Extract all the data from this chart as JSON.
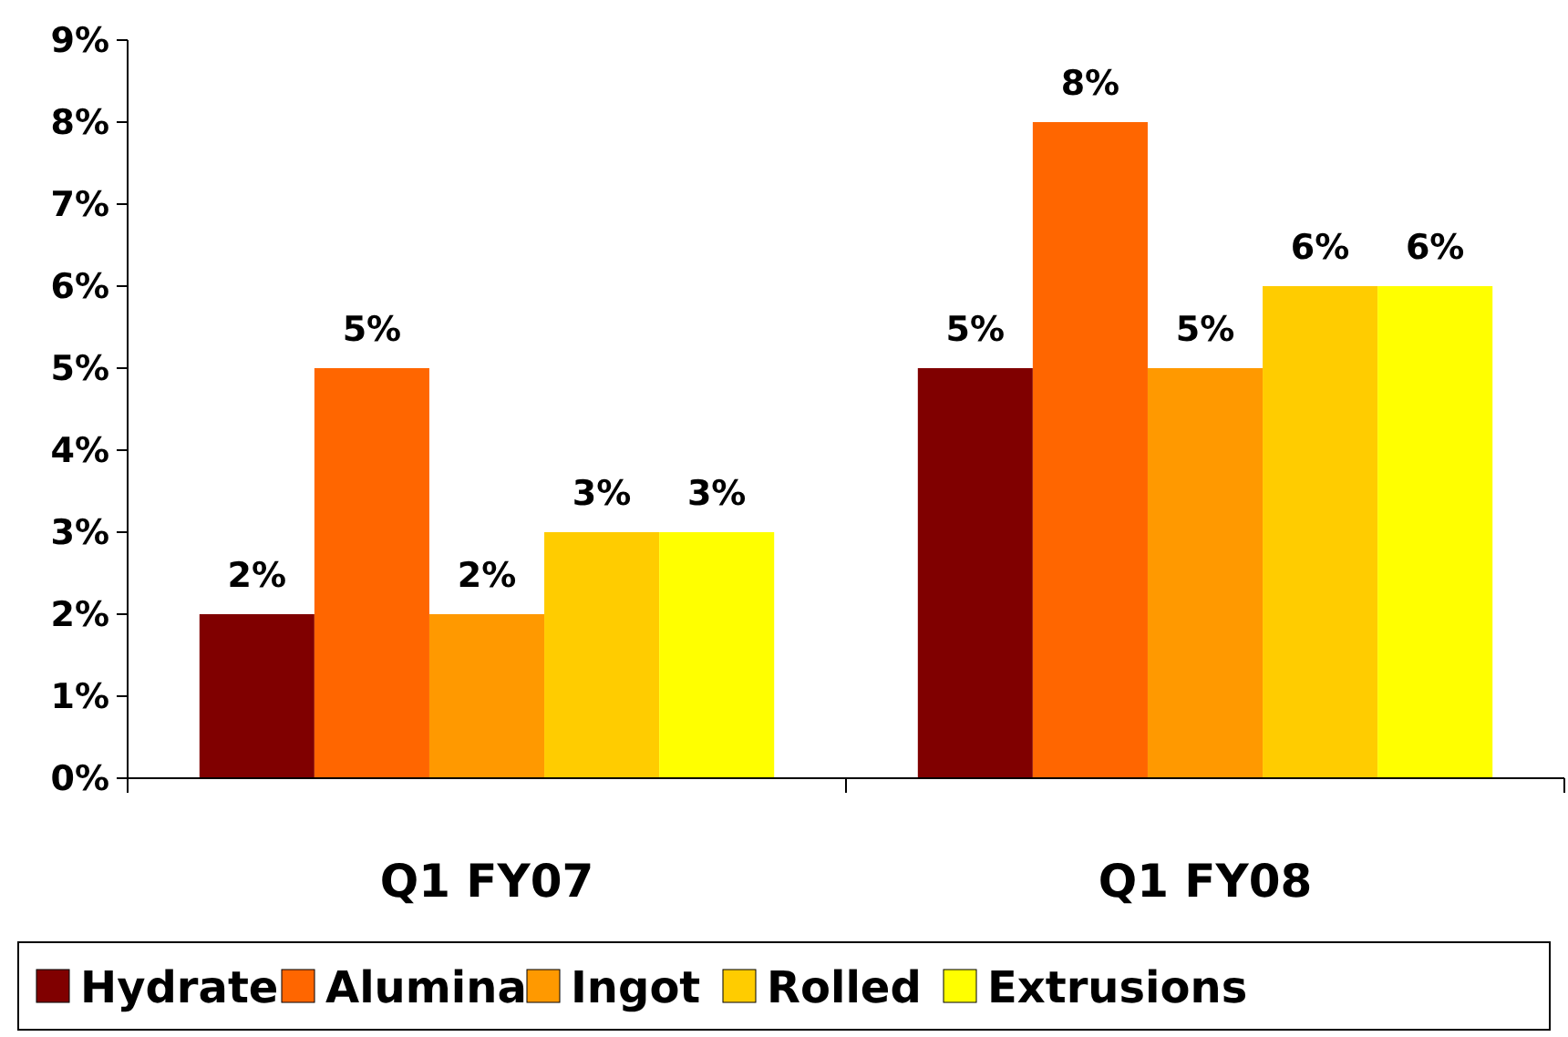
{
  "chart_data": {
    "type": "bar",
    "categories": [
      "Q1 FY07",
      "Q1 FY08"
    ],
    "series": [
      {
        "name": "Hydrate",
        "color": "#800000",
        "values": [
          2,
          5
        ],
        "value_labels": [
          "2%",
          "5%"
        ]
      },
      {
        "name": "Alumina",
        "color": "#ff6600",
        "values": [
          5,
          8
        ],
        "value_labels": [
          "5%",
          "8%"
        ]
      },
      {
        "name": "Ingot",
        "color": "#ff9900",
        "values": [
          2,
          5
        ],
        "value_labels": [
          "2%",
          "5%"
        ]
      },
      {
        "name": "Rolled",
        "color": "#ffcc00",
        "values": [
          3,
          6
        ],
        "value_labels": [
          "3%",
          "6%"
        ]
      },
      {
        "name": "Extrusions",
        "color": "#ffff00",
        "values": [
          3,
          6
        ],
        "value_labels": [
          "3%",
          "6%"
        ]
      }
    ],
    "ylim": [
      0,
      9
    ],
    "yticks": [
      {
        "value": 0,
        "label": "0%"
      },
      {
        "value": 1,
        "label": "1%"
      },
      {
        "value": 2,
        "label": "2%"
      },
      {
        "value": 3,
        "label": "3%"
      },
      {
        "value": 4,
        "label": "4%"
      },
      {
        "value": 5,
        "label": "5%"
      },
      {
        "value": 6,
        "label": "6%"
      },
      {
        "value": 7,
        "label": "7%"
      },
      {
        "value": 8,
        "label": "8%"
      },
      {
        "value": 9,
        "label": "9%"
      }
    ],
    "grid": false,
    "legend": "bottom"
  }
}
